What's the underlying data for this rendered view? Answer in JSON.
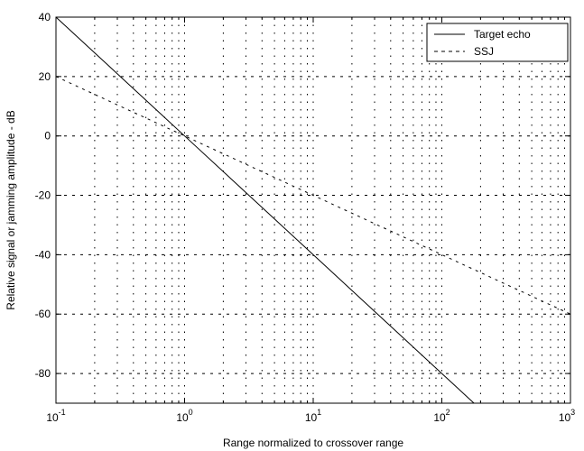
{
  "chart_data": {
    "type": "line",
    "xscale": "log",
    "xlim": [
      0.1,
      1000
    ],
    "ylim": [
      -90,
      40
    ],
    "grid": true,
    "legend_position": "top-right",
    "xlabel": "Range normalized to crossover range",
    "ylabel": "Relative signal or jamming amplitude - dB",
    "x_ticks": [
      {
        "value": 0.1,
        "base": "10",
        "exp": "-1"
      },
      {
        "value": 1,
        "base": "10",
        "exp": "0"
      },
      {
        "value": 10,
        "base": "10",
        "exp": "1"
      },
      {
        "value": 100,
        "base": "10",
        "exp": "2"
      },
      {
        "value": 1000,
        "base": "10",
        "exp": "3"
      }
    ],
    "y_ticks": [
      {
        "value": 40,
        "label": "40"
      },
      {
        "value": 20,
        "label": "20"
      },
      {
        "value": 0,
        "label": "0"
      },
      {
        "value": -20,
        "label": "-20"
      },
      {
        "value": -40,
        "label": "-40"
      },
      {
        "value": -60,
        "label": "-60"
      },
      {
        "value": -80,
        "label": "-80"
      }
    ],
    "series": [
      {
        "name": "Target echo",
        "style": "solid",
        "color": "#000000",
        "x": [
          0.1,
          1,
          10,
          100,
          177.8
        ],
        "y": [
          40,
          0,
          -40,
          -80,
          -90
        ]
      },
      {
        "name": "SSJ",
        "style": "dashed",
        "color": "#000000",
        "x": [
          0.1,
          1,
          10,
          100,
          1000
        ],
        "y": [
          20,
          0,
          -20,
          -40,
          -60
        ]
      }
    ]
  }
}
